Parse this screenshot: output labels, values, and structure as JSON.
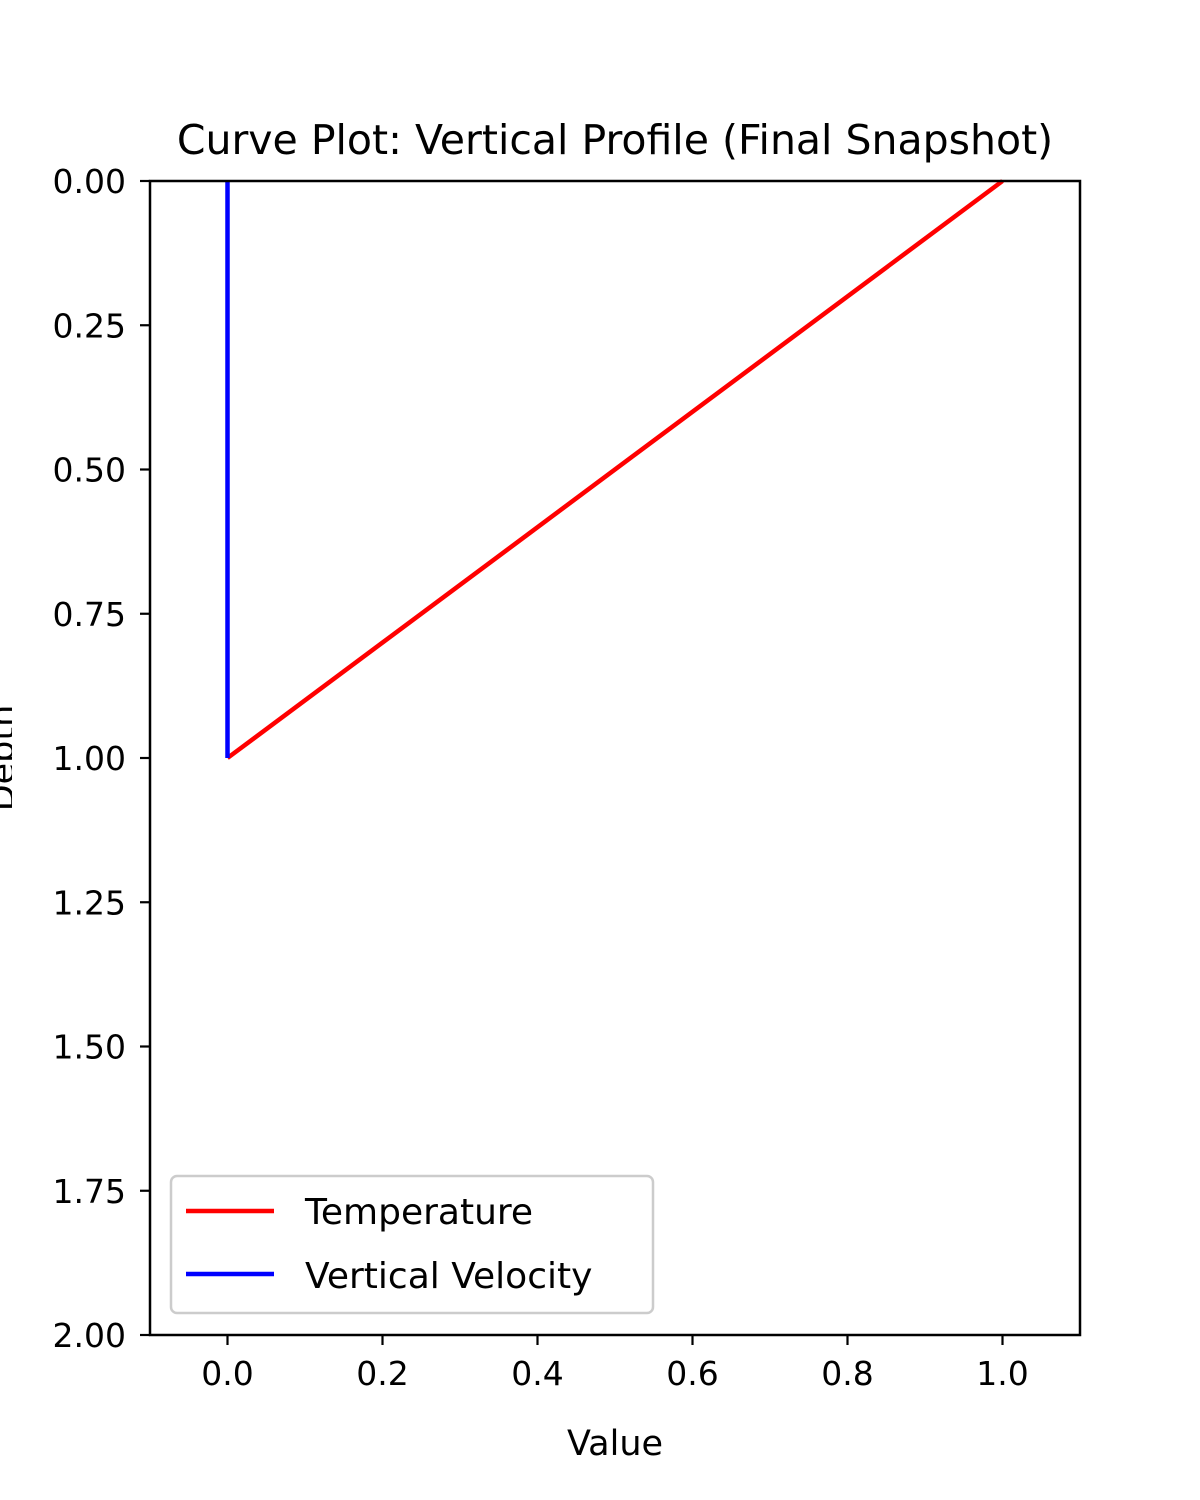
{
  "chart_data": {
    "type": "line",
    "title": "Curve Plot: Vertical Profile (Final Snapshot)",
    "xlabel": "Value",
    "ylabel": "Depth",
    "xlim": [
      -0.1,
      1.1
    ],
    "ylim": [
      2.0,
      0.0
    ],
    "y_inverted": true,
    "x_ticks": [
      "0.0",
      "0.2",
      "0.4",
      "0.6",
      "0.8",
      "1.0"
    ],
    "x_tick_values": [
      0.0,
      0.2,
      0.4,
      0.6,
      0.8,
      1.0
    ],
    "y_ticks": [
      "0.00",
      "0.25",
      "0.50",
      "0.75",
      "1.00",
      "1.25",
      "1.50",
      "1.75",
      "2.00"
    ],
    "y_tick_values": [
      0.0,
      0.25,
      0.5,
      0.75,
      1.0,
      1.25,
      1.5,
      1.75,
      2.0
    ],
    "grid": false,
    "legend_position": "bottom-left",
    "series": [
      {
        "name": "Temperature",
        "color": "#ff0000",
        "points": [
          [
            1.0,
            0.0
          ],
          [
            0.0,
            1.0
          ]
        ]
      },
      {
        "name": "Vertical Velocity",
        "color": "#0000ff",
        "points": [
          [
            0.0,
            0.0
          ],
          [
            0.0,
            1.0
          ]
        ]
      }
    ]
  }
}
